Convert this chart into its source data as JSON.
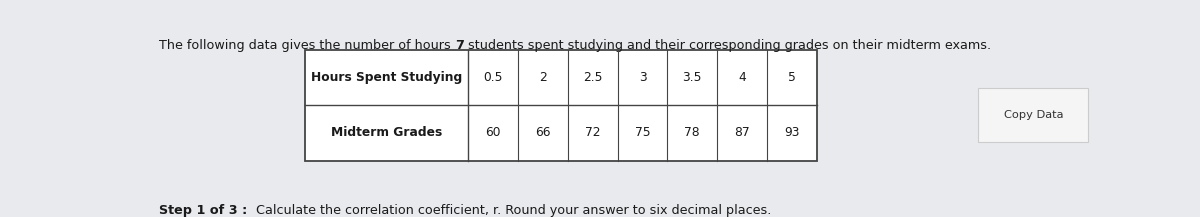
{
  "title_pre": "The following data gives the number of hours ",
  "title_bold": "7",
  "title_post": " students spent studying and their corresponding grades on their midterm exams.",
  "row1_label": "Hours Spent Studying",
  "row2_label": "Midterm Grades",
  "row1_values": [
    "0.5",
    "2",
    "2.5",
    "3",
    "3.5",
    "4",
    "5"
  ],
  "row2_values": [
    "60",
    "66",
    "72",
    "75",
    "78",
    "87",
    "93"
  ],
  "step_bold": "Step 1 of 3 :",
  "step_text": "  Calculate the correlation coefficient, r. Round your answer to six decimal places.",
  "copy_button_text": "Copy Data",
  "outer_bg": "#e8eaed",
  "panel_bg": "#ffffff",
  "table_border_color": "#444444",
  "text_color": "#1a1a1a",
  "btn_border": "#cccccc",
  "btn_bg": "#f5f5f5",
  "btn_text_color": "#333333"
}
